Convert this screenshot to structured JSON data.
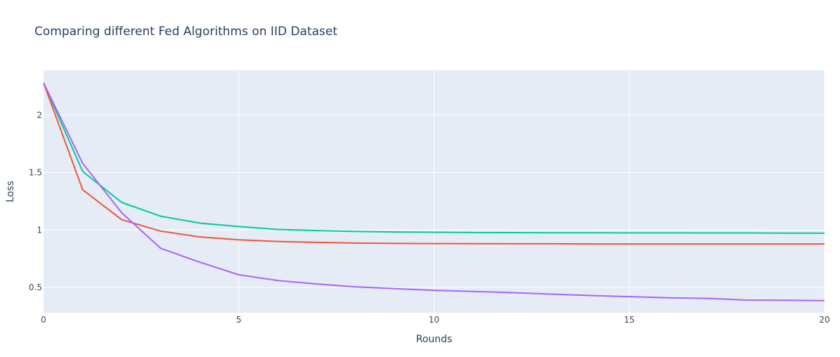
{
  "chart_data": {
    "type": "line",
    "title": "Comparing different Fed Algorithms on IID Dataset",
    "xlabel": "Rounds",
    "ylabel": "Loss",
    "xlim": [
      0,
      20
    ],
    "ylim": [
      0.28,
      2.39
    ],
    "xticks": [
      0,
      5,
      10,
      15,
      20
    ],
    "yticks": [
      0.5,
      1,
      1.5,
      2
    ],
    "x_tick_labels": [
      "0",
      "5",
      "10",
      "15",
      "20"
    ],
    "y_tick_labels": [
      "0.5",
      "1",
      "1.5",
      "2"
    ],
    "grid": true,
    "colors": {
      "plot_bg": "#e5ecf6",
      "grid": "#ffffff"
    },
    "x": [
      0,
      1,
      2,
      3,
      4,
      5,
      6,
      7,
      8,
      9,
      10,
      11,
      12,
      13,
      14,
      15,
      16,
      17,
      18,
      19,
      20
    ],
    "series": [
      {
        "color": "#00cc96",
        "values": [
          2.28,
          1.51,
          1.24,
          1.12,
          1.06,
          1.03,
          1.005,
          0.995,
          0.987,
          0.983,
          0.98,
          0.978,
          0.977,
          0.976,
          0.976,
          0.975,
          0.975,
          0.974,
          0.974,
          0.973,
          0.972
        ]
      },
      {
        "color": "#ef553b",
        "values": [
          2.28,
          1.35,
          1.09,
          0.99,
          0.94,
          0.915,
          0.9,
          0.892,
          0.886,
          0.883,
          0.882,
          0.881,
          0.88,
          0.88,
          0.879,
          0.879,
          0.879,
          0.879,
          0.879,
          0.879,
          0.879
        ]
      },
      {
        "color": "#ab63fa",
        "values": [
          2.28,
          1.58,
          1.15,
          0.84,
          0.72,
          0.61,
          0.56,
          0.53,
          0.505,
          0.49,
          0.475,
          0.465,
          0.455,
          0.442,
          0.43,
          0.42,
          0.41,
          0.405,
          0.39,
          0.388,
          0.385
        ]
      }
    ]
  }
}
